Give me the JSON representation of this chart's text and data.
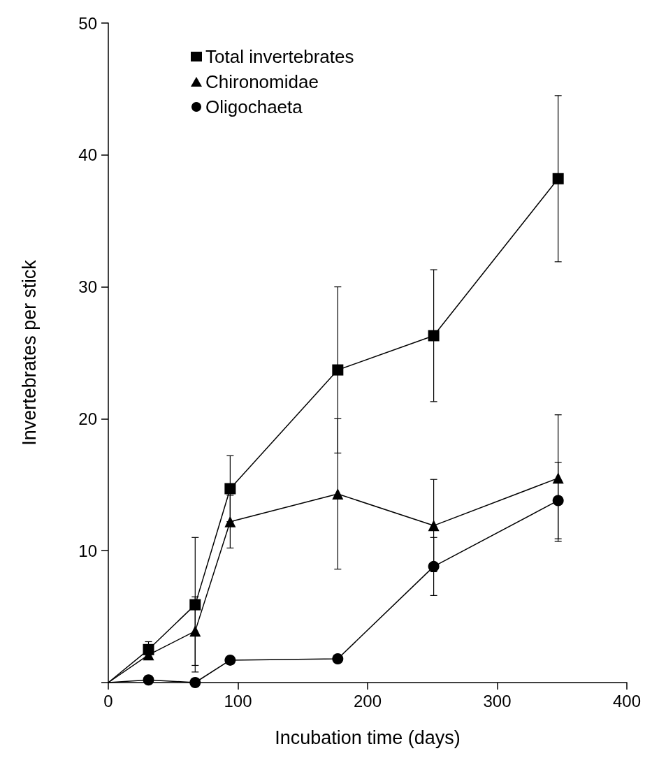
{
  "chart_data": {
    "type": "line",
    "xlabel": "Incubation time (days)",
    "ylabel": "Invertebrates per stick",
    "x": [
      0,
      31,
      67,
      94,
      177,
      251,
      347
    ],
    "xlim": [
      0,
      400
    ],
    "xticks": [
      0,
      100,
      200,
      300,
      400
    ],
    "ylim": [
      0,
      50
    ],
    "yticks": [
      {
        "value": 0,
        "label": null
      },
      10,
      20,
      30,
      40,
      50
    ],
    "grid": false,
    "legend": "top left",
    "series": [
      {
        "name": "Total invertebrates",
        "color": "#000000",
        "marker": "square",
        "values": [
          0,
          2.5,
          5.9,
          14.7,
          23.7,
          26.3,
          38.2
        ],
        "errors": [
          null,
          0.6,
          5.1,
          2.5,
          6.3,
          5.0,
          6.3
        ]
      },
      {
        "name": "Chironomidae",
        "color": "#000000",
        "marker": "triangle",
        "values": [
          0,
          2.1,
          3.9,
          12.2,
          14.3,
          11.9,
          15.5
        ],
        "errors": [
          null,
          0.3,
          2.6,
          2.0,
          5.7,
          3.5,
          4.8
        ]
      },
      {
        "name": "Oligochaeta",
        "color": "#000000",
        "marker": "circle",
        "values": [
          0,
          0.2,
          0,
          1.7,
          1.8,
          8.8,
          13.8
        ],
        "errors": [
          null,
          null,
          null,
          null,
          null,
          2.2,
          2.9
        ]
      }
    ]
  }
}
